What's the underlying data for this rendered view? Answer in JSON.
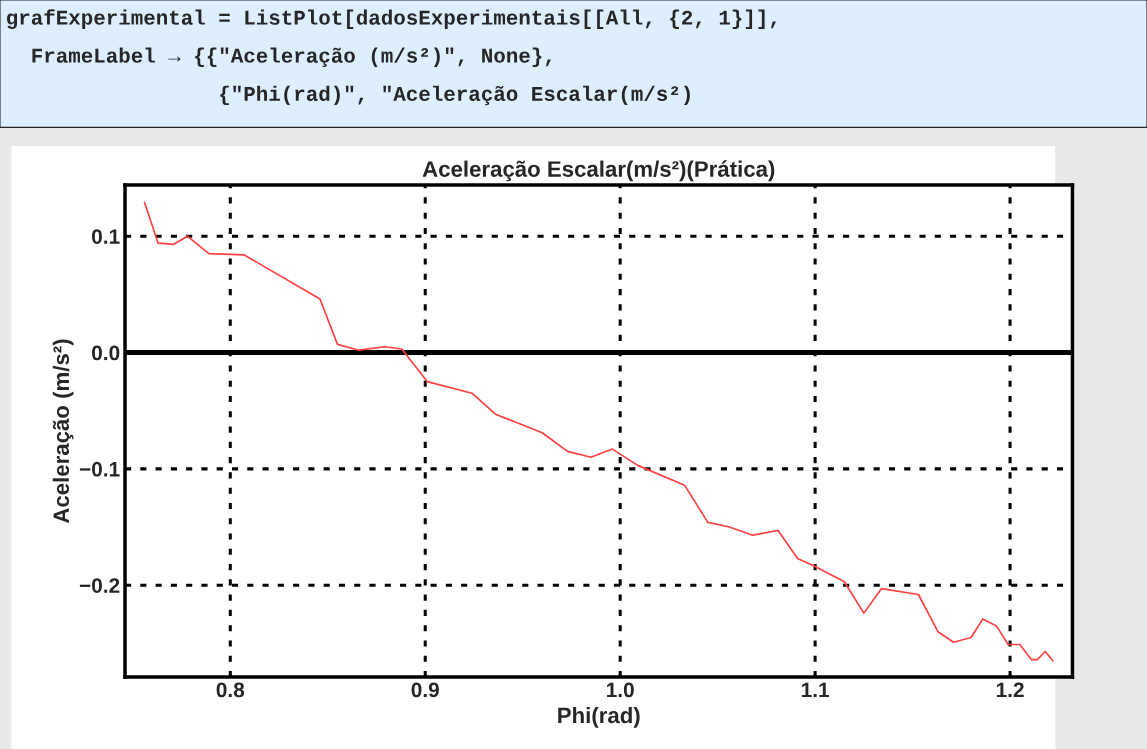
{
  "chart_data": {
    "type": "line",
    "title": "Aceleração Escalar(m/s²)(Prática)",
    "xlabel": "Phi(rad)",
    "ylabel": "Aceleração (m/s²)",
    "annotations": [
      "grafExperimental = ListPlot[dadosExperimentais[[All, {2, 1}]],",
      "  FrameLabel → {{\"Aceleração (m/s²)\", None},",
      "                 {\"Phi(rad)\", \"Aceleração Escalar(m/s²)"
    ],
    "series": [
      {
        "color": "#ff4040",
        "x": [
          0.756,
          0.763,
          0.771,
          0.778,
          0.789,
          0.807,
          0.846,
          0.855,
          0.866,
          0.879,
          0.888,
          0.901,
          0.924,
          0.936,
          0.96,
          0.973,
          0.985,
          0.996,
          1.009,
          1.033,
          1.045,
          1.056,
          1.068,
          1.081,
          1.091,
          1.1,
          1.115,
          1.125,
          1.134,
          1.153,
          1.163,
          1.171,
          1.18,
          1.186,
          1.193,
          1.199,
          1.205,
          1.211,
          1.214,
          1.218,
          1.222
        ],
        "values": [
          0.129,
          0.094,
          0.093,
          0.1,
          0.085,
          0.084,
          0.046,
          0.007,
          0.002,
          0.005,
          0.003,
          -0.025,
          -0.035,
          -0.053,
          -0.069,
          -0.085,
          -0.09,
          -0.083,
          -0.097,
          -0.114,
          -0.146,
          -0.15,
          -0.157,
          -0.153,
          -0.177,
          -0.184,
          -0.197,
          -0.224,
          -0.203,
          -0.208,
          -0.24,
          -0.249,
          -0.245,
          -0.229,
          -0.235,
          -0.251,
          -0.251,
          -0.264,
          -0.264,
          -0.257,
          -0.265
        ]
      }
    ],
    "xlim": [
      0.746,
      1.232
    ],
    "ylim": [
      -0.279,
      0.144
    ],
    "xticks": [
      0.8,
      0.9,
      {
        "value": 1.0,
        "label": "1.0"
      },
      1.1,
      1.2
    ],
    "yticks": [
      {
        "value": 0.1,
        "label": "0.1"
      },
      {
        "value": 0.0,
        "label": "0.0"
      },
      {
        "value": -0.1,
        "label": "−0.1"
      },
      {
        "value": -0.2,
        "label": "−0.2"
      }
    ],
    "ref_lines": [
      {
        "axis": "y",
        "value": 0,
        "color": "#000000"
      }
    ],
    "grid": true,
    "line_style": "solid",
    "marker": "none"
  }
}
